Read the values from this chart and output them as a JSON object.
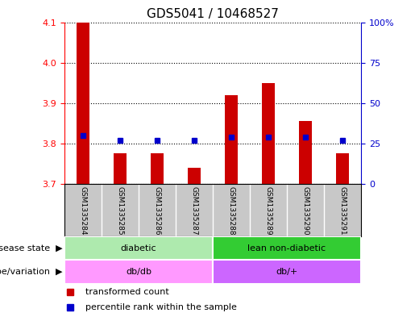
{
  "title": "GDS5041 / 10468527",
  "samples": [
    "GSM1335284",
    "GSM1335285",
    "GSM1335286",
    "GSM1335287",
    "GSM1335288",
    "GSM1335289",
    "GSM1335290",
    "GSM1335291"
  ],
  "transformed_count": [
    4.1,
    3.775,
    3.775,
    3.74,
    3.92,
    3.95,
    3.855,
    3.775
  ],
  "percentile_rank": [
    30,
    27,
    27,
    27,
    29,
    29,
    29,
    27
  ],
  "ylim_left": [
    3.7,
    4.1
  ],
  "ylim_right": [
    0,
    100
  ],
  "yticks_left": [
    3.7,
    3.8,
    3.9,
    4.0,
    4.1
  ],
  "yticks_right": [
    0,
    25,
    50,
    75,
    100
  ],
  "disease_state": [
    {
      "label": "diabetic",
      "color": "#AEEAAE",
      "span": [
        0,
        4
      ]
    },
    {
      "label": "lean non-diabetic",
      "color": "#33CC33",
      "span": [
        4,
        8
      ]
    }
  ],
  "genotype": [
    {
      "label": "db/db",
      "color": "#FF99FF",
      "span": [
        0,
        4
      ]
    },
    {
      "label": "db/+",
      "color": "#CC66FF",
      "span": [
        4,
        8
      ]
    }
  ],
  "bar_color": "#CC0000",
  "dot_color": "#0000CC",
  "bar_bottom": 3.7,
  "right_axis_color": "#0000CC",
  "legend_red_label": "transformed count",
  "legend_blue_label": "percentile rank within the sample",
  "grid_color": "black",
  "bg_color": "#FFFFFF",
  "label_row1": "disease state",
  "label_row2": "genotype/variation",
  "sample_label_bg": "#C8C8C8"
}
